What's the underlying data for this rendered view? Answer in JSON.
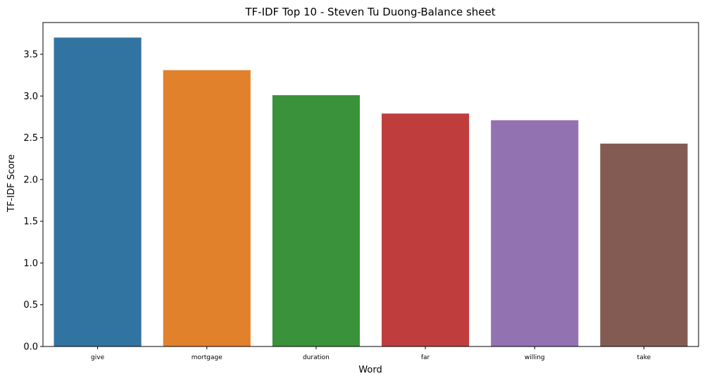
{
  "chart_data": {
    "type": "bar",
    "title": "TF-IDF Top 10 - Steven Tu Duong-Balance sheet",
    "xlabel": "Word",
    "ylabel": "TF-IDF Score",
    "categories": [
      "give",
      "mortgage",
      "duration",
      "far",
      "willing",
      "take"
    ],
    "values": [
      3.7,
      3.31,
      3.01,
      2.79,
      2.71,
      2.43
    ],
    "colors": [
      "#3274a1",
      "#e1812c",
      "#3a923a",
      "#c03d3e",
      "#9372b2",
      "#845b53"
    ],
    "ylim": [
      0,
      3.88
    ],
    "yticks": [
      "0.0",
      "0.5",
      "1.0",
      "1.5",
      "2.0",
      "2.5",
      "3.0",
      "3.5"
    ],
    "grid": false,
    "legend": "none"
  }
}
